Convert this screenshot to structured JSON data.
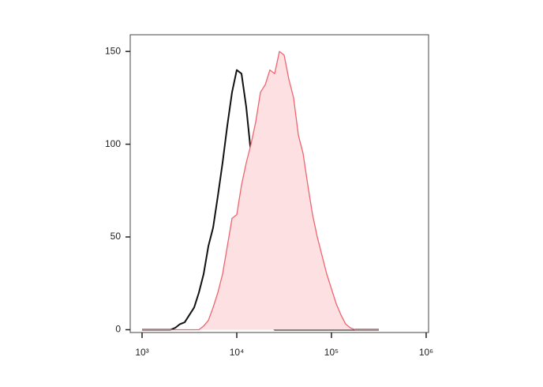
{
  "chart_data": {
    "type": "histogram-overlay",
    "x": [
      1000,
      1122,
      1259,
      1413,
      1585,
      1778,
      1995,
      2239,
      2512,
      2818,
      3162,
      3548,
      3981,
      4467,
      5012,
      5623,
      6310,
      7079,
      7943,
      8913,
      10000,
      11220,
      12589,
      14125,
      15849,
      17783,
      19953,
      22387,
      25119,
      28184,
      31623,
      35481,
      39811,
      44668,
      50119,
      56234,
      63096,
      70795,
      79433,
      89125,
      100000,
      112202,
      125893,
      141254,
      158489,
      177828,
      199526,
      223872,
      251189,
      281838,
      316228
    ],
    "series": [
      {
        "color": "#111111",
        "values": [
          0,
          0,
          0,
          0,
          0,
          0,
          0,
          1,
          3,
          4,
          8,
          12,
          20,
          30,
          45,
          55,
          72,
          90,
          110,
          128,
          140,
          138,
          120,
          95,
          55,
          25,
          8,
          2,
          0,
          0,
          0,
          0,
          0,
          0,
          0,
          0,
          0,
          0,
          0,
          0,
          0,
          0,
          0,
          0,
          0,
          0,
          0,
          0,
          0,
          0,
          0
        ]
      },
      {
        "color": "#f0646f",
        "fill": "#fde0e2",
        "values": [
          0,
          0,
          0,
          0,
          0,
          0,
          0,
          0,
          0,
          0,
          0,
          0,
          0,
          2,
          5,
          12,
          20,
          30,
          45,
          60,
          62,
          78,
          90,
          100,
          112,
          128,
          132,
          140,
          138,
          150,
          148,
          135,
          125,
          105,
          95,
          78,
          62,
          50,
          40,
          30,
          22,
          14,
          8,
          3,
          1,
          0,
          0,
          0,
          0,
          0,
          0
        ]
      }
    ],
    "xscale": "log",
    "xlim": [
      750,
      1060000
    ],
    "xticks": [
      {
        "value": 1000,
        "label": "10³"
      },
      {
        "value": 10000,
        "label": "10⁴"
      },
      {
        "value": 100000,
        "label": "10⁵"
      },
      {
        "value": 1000000,
        "label": "10⁶"
      }
    ],
    "ylim": [
      -1.5,
      159
    ],
    "yticks": [
      0,
      50,
      100,
      150
    ]
  }
}
